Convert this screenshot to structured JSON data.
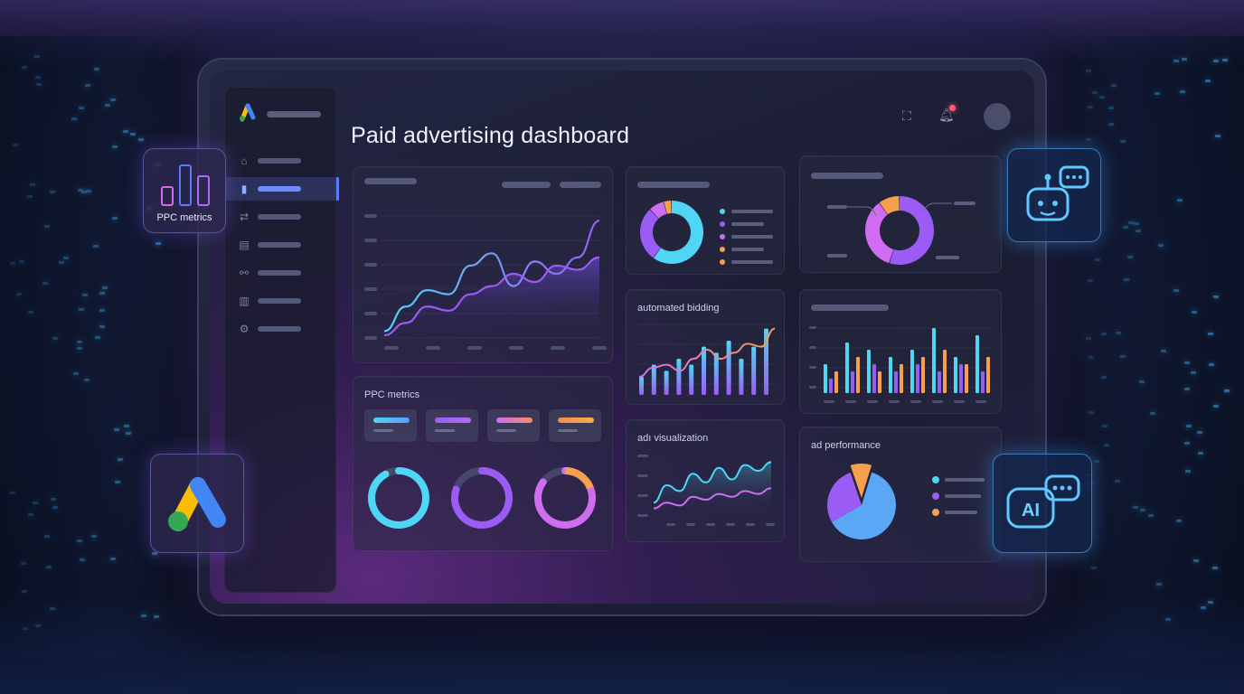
{
  "dashboard": {
    "title": "Paid advertising dashboard",
    "sidebar": {
      "logo_icon": "google-ads-logo-icon",
      "items": [
        {
          "icon": "home-icon",
          "glyph": "⌂",
          "active": false
        },
        {
          "icon": "bar-chart-icon",
          "glyph": "▮",
          "active": true
        },
        {
          "icon": "refresh-icon",
          "glyph": "⇄",
          "active": false
        },
        {
          "icon": "card-icon",
          "glyph": "▤",
          "active": false
        },
        {
          "icon": "link-icon",
          "glyph": "⚯",
          "active": false
        },
        {
          "icon": "report-icon",
          "glyph": "▥",
          "active": false
        },
        {
          "icon": "gear-icon",
          "glyph": "⚙",
          "active": false
        }
      ]
    },
    "header_icons": [
      "expand-icon",
      "bell-icon",
      "avatar"
    ],
    "cards": {
      "ppc_metrics": {
        "label": "PPC metrics"
      },
      "automated_bidding": {
        "label": "automated bidding"
      },
      "ad_visualization": {
        "label": "adı visualization"
      },
      "ad_performance": {
        "label": "ad performance"
      }
    }
  },
  "floating_widgets": {
    "ppc": {
      "label": "PPC metrics",
      "icon": "bar-chart-icon"
    },
    "google_ads": {
      "icon": "google-ads-logo-icon"
    },
    "chatbot": {
      "icon": "robot-chat-icon"
    },
    "ai": {
      "label": "AI",
      "icon": "ai-chat-icon"
    }
  },
  "colors": {
    "cyan": "#4fd6f5",
    "purple": "#9b5cf5",
    "pink": "#d06cf0",
    "orange": "#f5a04c",
    "blue": "#5b7bff"
  },
  "chart_data": [
    {
      "type": "area",
      "name": "main-trend",
      "x": [
        0,
        1,
        2,
        3,
        4,
        5,
        6,
        7,
        8,
        9,
        10
      ],
      "series": [
        {
          "values": [
            2,
            14,
            22,
            20,
            34,
            40,
            24,
            36,
            30,
            38,
            56
          ]
        },
        {
          "values": [
            0,
            6,
            14,
            12,
            20,
            24,
            30,
            26,
            34,
            32,
            38
          ]
        }
      ],
      "ylim": [
        0,
        60
      ],
      "grid": true
    },
    {
      "type": "pie",
      "name": "donut-1",
      "values": [
        60,
        28,
        8,
        4
      ],
      "colors": [
        "#4fd6f5",
        "#9b5cf5",
        "#d06cf0",
        "#f5a04c"
      ]
    },
    {
      "type": "pie",
      "name": "donut-2",
      "values": [
        55,
        35,
        10
      ],
      "colors": [
        "#9b5cf5",
        "#d06cf0",
        "#f5a04c"
      ]
    },
    {
      "type": "bar",
      "name": "automated-bidding",
      "values": [
        3,
        5,
        4,
        6,
        5,
        8,
        7,
        9,
        6,
        8,
        11
      ],
      "line": [
        3,
        4.5,
        5,
        4,
        6,
        7.5,
        6,
        7,
        8.5,
        8,
        11
      ],
      "ylim": [
        0,
        12
      ]
    },
    {
      "type": "bar",
      "name": "grouped-bars",
      "series": [
        {
          "color": "#4fd6f5",
          "values": [
            4,
            7,
            6,
            5,
            6,
            9,
            5,
            8
          ]
        },
        {
          "color": "#9b5cf5",
          "values": [
            2,
            3,
            4,
            3,
            4,
            3,
            4,
            3
          ]
        },
        {
          "color": "#f5a04c",
          "values": [
            3,
            5,
            3,
            4,
            5,
            6,
            4,
            5
          ]
        }
      ],
      "ylim": [
        0,
        10
      ]
    },
    {
      "type": "area",
      "name": "ad-visualization",
      "x": [
        0,
        1,
        2,
        3,
        4,
        5,
        6,
        7,
        8,
        9
      ],
      "series": [
        {
          "values": [
            4,
            10,
            8,
            14,
            11,
            16,
            12,
            17,
            15,
            18
          ]
        },
        {
          "values": [
            2,
            4,
            3,
            6,
            5,
            7,
            6,
            8,
            7,
            9
          ]
        }
      ],
      "ylim": [
        0,
        20
      ]
    },
    {
      "type": "pie",
      "name": "ad-performance",
      "values": [
        62,
        28,
        10
      ],
      "colors": [
        "#5aa7f5",
        "#9b5cf5",
        "#f5a04c"
      ]
    },
    {
      "type": "pie",
      "name": "ppc-rings",
      "values": [
        92,
        80,
        85
      ]
    }
  ]
}
